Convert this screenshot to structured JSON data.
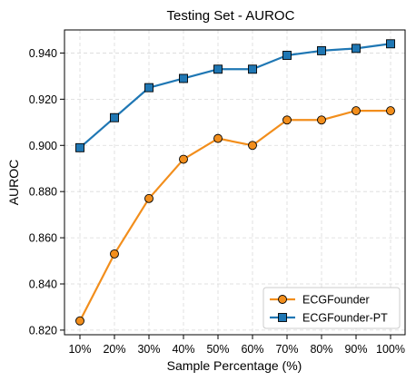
{
  "chart_data": {
    "type": "line",
    "title": "Testing Set - AUROC",
    "xlabel": "Sample Percentage (%)",
    "ylabel": "AUROC",
    "categories": [
      "10%",
      "20%",
      "30%",
      "40%",
      "50%",
      "60%",
      "70%",
      "80%",
      "90%",
      "100%"
    ],
    "yticks": [
      "0.820",
      "0.840",
      "0.860",
      "0.880",
      "0.900",
      "0.920",
      "0.940"
    ],
    "ylim": [
      0.818,
      0.95
    ],
    "grid": true,
    "legend_position": "lower-right",
    "series": [
      {
        "name": "ECGFounder",
        "color": "#f28e1c",
        "marker": "circle",
        "values": [
          0.824,
          0.853,
          0.877,
          0.894,
          0.903,
          0.9,
          0.911,
          0.911,
          0.915,
          0.915
        ]
      },
      {
        "name": "ECGFounder-PT",
        "color": "#1f77b4",
        "marker": "square",
        "values": [
          0.899,
          0.912,
          0.925,
          0.929,
          0.933,
          0.933,
          0.939,
          0.941,
          0.942,
          0.944
        ]
      }
    ]
  }
}
